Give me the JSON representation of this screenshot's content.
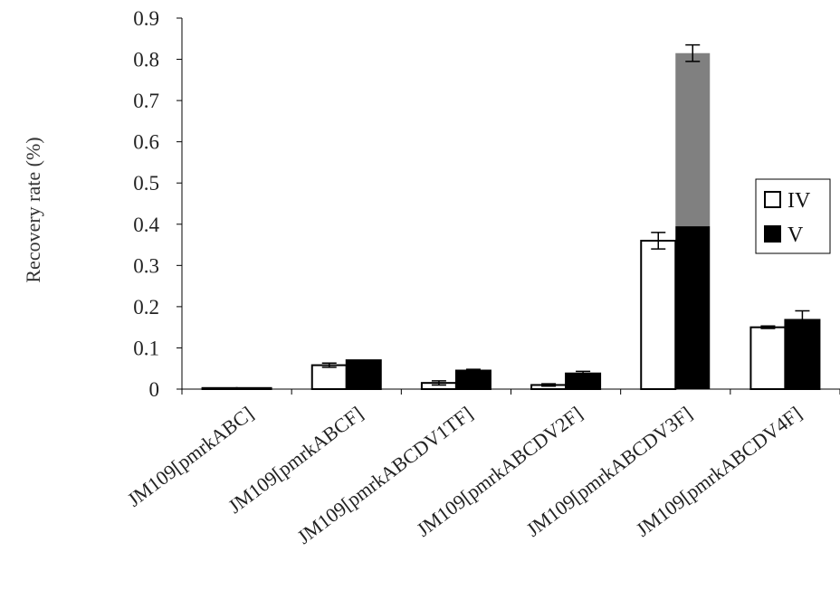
{
  "chart_data": {
    "type": "bar",
    "title": "",
    "xlabel": "",
    "ylabel": "Recovery rate (%)",
    "ylim": [
      0,
      0.9
    ],
    "yticks": [
      0,
      0.1,
      0.2,
      0.3,
      0.4,
      0.5,
      0.6,
      0.7,
      0.8,
      0.9
    ],
    "grid": false,
    "legend_position": "right",
    "categories": [
      "JM109[pmrkABC]",
      "JM109[pmrkABCF]",
      "JM109[pmrkABCDV1TF]",
      "JM109[pmrkABCDV2F]",
      "JM109[pmrkABCDV3F]",
      "JM109[pmrkABCDV4F]"
    ],
    "series": [
      {
        "name": "IV",
        "color": "#ffffff",
        "edge_color": "#000000",
        "values": [
          0.0,
          0.058,
          0.015,
          0.01,
          0.36,
          0.15
        ],
        "errors": [
          0.0,
          0.005,
          0.005,
          0.003,
          0.02,
          0.003
        ]
      },
      {
        "name": "V",
        "color": "#000000",
        "edge_color": "#000000",
        "values": [
          0.0,
          0.07,
          0.045,
          0.038,
          0.815,
          0.168
        ],
        "errors": [
          0.0,
          0.0,
          0.003,
          0.005,
          0.02,
          0.022
        ],
        "segments": [
          null,
          null,
          null,
          null,
          {
            "lower": 0.395,
            "lower_color": "#000000",
            "upper_color": "#808080"
          },
          null
        ]
      }
    ]
  }
}
